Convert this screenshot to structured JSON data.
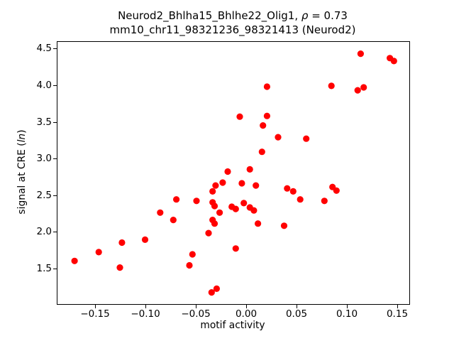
{
  "chart_data": {
    "type": "scatter",
    "title": {
      "line1_prefix": "Neurod2_Bhlha15_Bhlhe22_Olig1, ",
      "line1_rho": "ρ",
      "line1_suffix": " = 0.73",
      "line2": "mm10_chr11_98321236_98321413 (Neurod2)"
    },
    "xlabel": "motif activity",
    "ylabel_parts": {
      "prefix": "signal at CRE (",
      "italic": "ln",
      "suffix": ")"
    },
    "marker_color": "#ff0000",
    "background_color": "#ffffff",
    "grid": false,
    "legend": false,
    "xlim": [
      -0.188,
      0.1613
    ],
    "ylim": [
      1.026,
      4.611
    ],
    "xticks": [
      -0.15,
      -0.1,
      -0.05,
      0.0,
      0.05,
      0.1,
      0.15
    ],
    "xtick_labels": [
      "−0.15",
      "−0.10",
      "−0.05",
      "0.00",
      "0.05",
      "0.10",
      "0.15"
    ],
    "yticks": [
      1.5,
      2.0,
      2.5,
      3.0,
      3.5,
      4.0,
      4.5
    ],
    "ytick_labels": [
      "1.5",
      "2.0",
      "2.5",
      "3.0",
      "3.5",
      "4.0",
      "4.5"
    ],
    "points": [
      [
        -0.171,
        1.62
      ],
      [
        -0.147,
        1.74
      ],
      [
        -0.126,
        1.53
      ],
      [
        -0.124,
        1.87
      ],
      [
        -0.101,
        1.91
      ],
      [
        -0.086,
        2.28
      ],
      [
        -0.073,
        2.18
      ],
      [
        -0.07,
        2.46
      ],
      [
        -0.057,
        1.56
      ],
      [
        -0.054,
        1.71
      ],
      [
        -0.05,
        2.44
      ],
      [
        -0.038,
        2.0
      ],
      [
        -0.035,
        1.19
      ],
      [
        -0.034,
        2.57
      ],
      [
        -0.034,
        2.42
      ],
      [
        -0.034,
        2.18
      ],
      [
        -0.032,
        2.37
      ],
      [
        -0.032,
        2.13
      ],
      [
        -0.031,
        2.65
      ],
      [
        -0.03,
        1.24
      ],
      [
        -0.027,
        2.28
      ],
      [
        -0.024,
        2.69
      ],
      [
        -0.019,
        2.84
      ],
      [
        -0.015,
        2.36
      ],
      [
        -0.011,
        2.33
      ],
      [
        -0.011,
        1.79
      ],
      [
        -0.007,
        3.59
      ],
      [
        -0.005,
        2.68
      ],
      [
        -0.003,
        2.41
      ],
      [
        0.003,
        2.87
      ],
      [
        0.003,
        2.35
      ],
      [
        0.007,
        2.31
      ],
      [
        0.009,
        2.65
      ],
      [
        0.011,
        2.13
      ],
      [
        0.015,
        3.11
      ],
      [
        0.016,
        3.47
      ],
      [
        0.02,
        4.0
      ],
      [
        0.02,
        3.6
      ],
      [
        0.031,
        3.31
      ],
      [
        0.037,
        2.1
      ],
      [
        0.04,
        2.61
      ],
      [
        0.046,
        2.57
      ],
      [
        0.053,
        2.46
      ],
      [
        0.059,
        3.29
      ],
      [
        0.077,
        2.44
      ],
      [
        0.084,
        4.01
      ],
      [
        0.085,
        2.63
      ],
      [
        0.089,
        2.58
      ],
      [
        0.11,
        3.95
      ],
      [
        0.113,
        4.45
      ],
      [
        0.116,
        3.99
      ],
      [
        0.142,
        4.39
      ],
      [
        0.146,
        4.35
      ]
    ]
  }
}
